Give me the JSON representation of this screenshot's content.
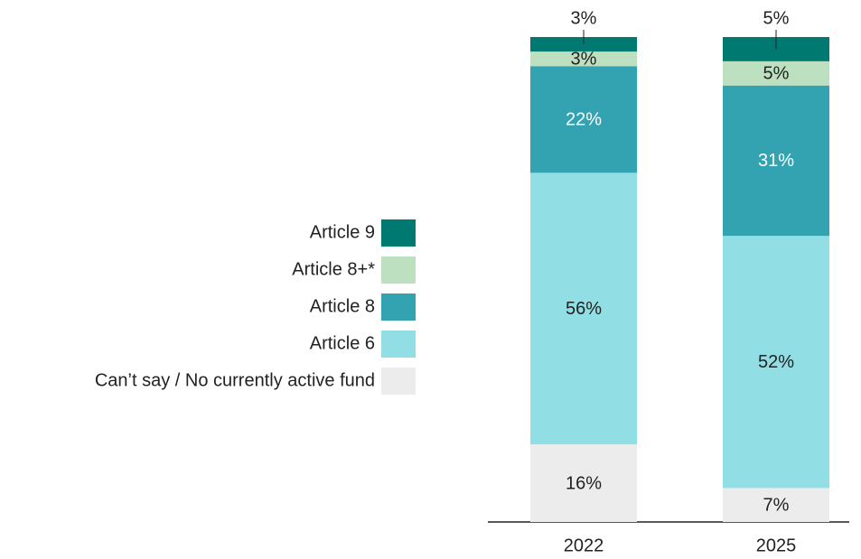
{
  "chart_data": {
    "type": "stacked_bar",
    "categories": [
      "2022",
      "2025"
    ],
    "ylim": [
      0,
      100
    ],
    "series": [
      {
        "name": "Can’t say / No currently active fund",
        "color": "#ececec",
        "values": [
          16,
          7
        ],
        "value_labels": [
          "16%",
          "7%"
        ]
      },
      {
        "name": "Article 6",
        "color": "#91dfe5",
        "values": [
          56,
          52
        ],
        "value_labels": [
          "56%",
          "52%"
        ]
      },
      {
        "name": "Article 8",
        "color": "#33a3b2",
        "values": [
          22,
          31
        ],
        "value_labels": [
          "22%",
          "31%"
        ]
      },
      {
        "name": "Article 8+*",
        "color": "#bde0c0",
        "values": [
          3,
          5
        ],
        "value_labels": [
          "3%",
          "5%"
        ]
      },
      {
        "name": "Article 9",
        "color": "#007a70",
        "values": [
          3,
          5
        ],
        "value_labels": [
          "3%",
          "5%"
        ]
      }
    ]
  }
}
